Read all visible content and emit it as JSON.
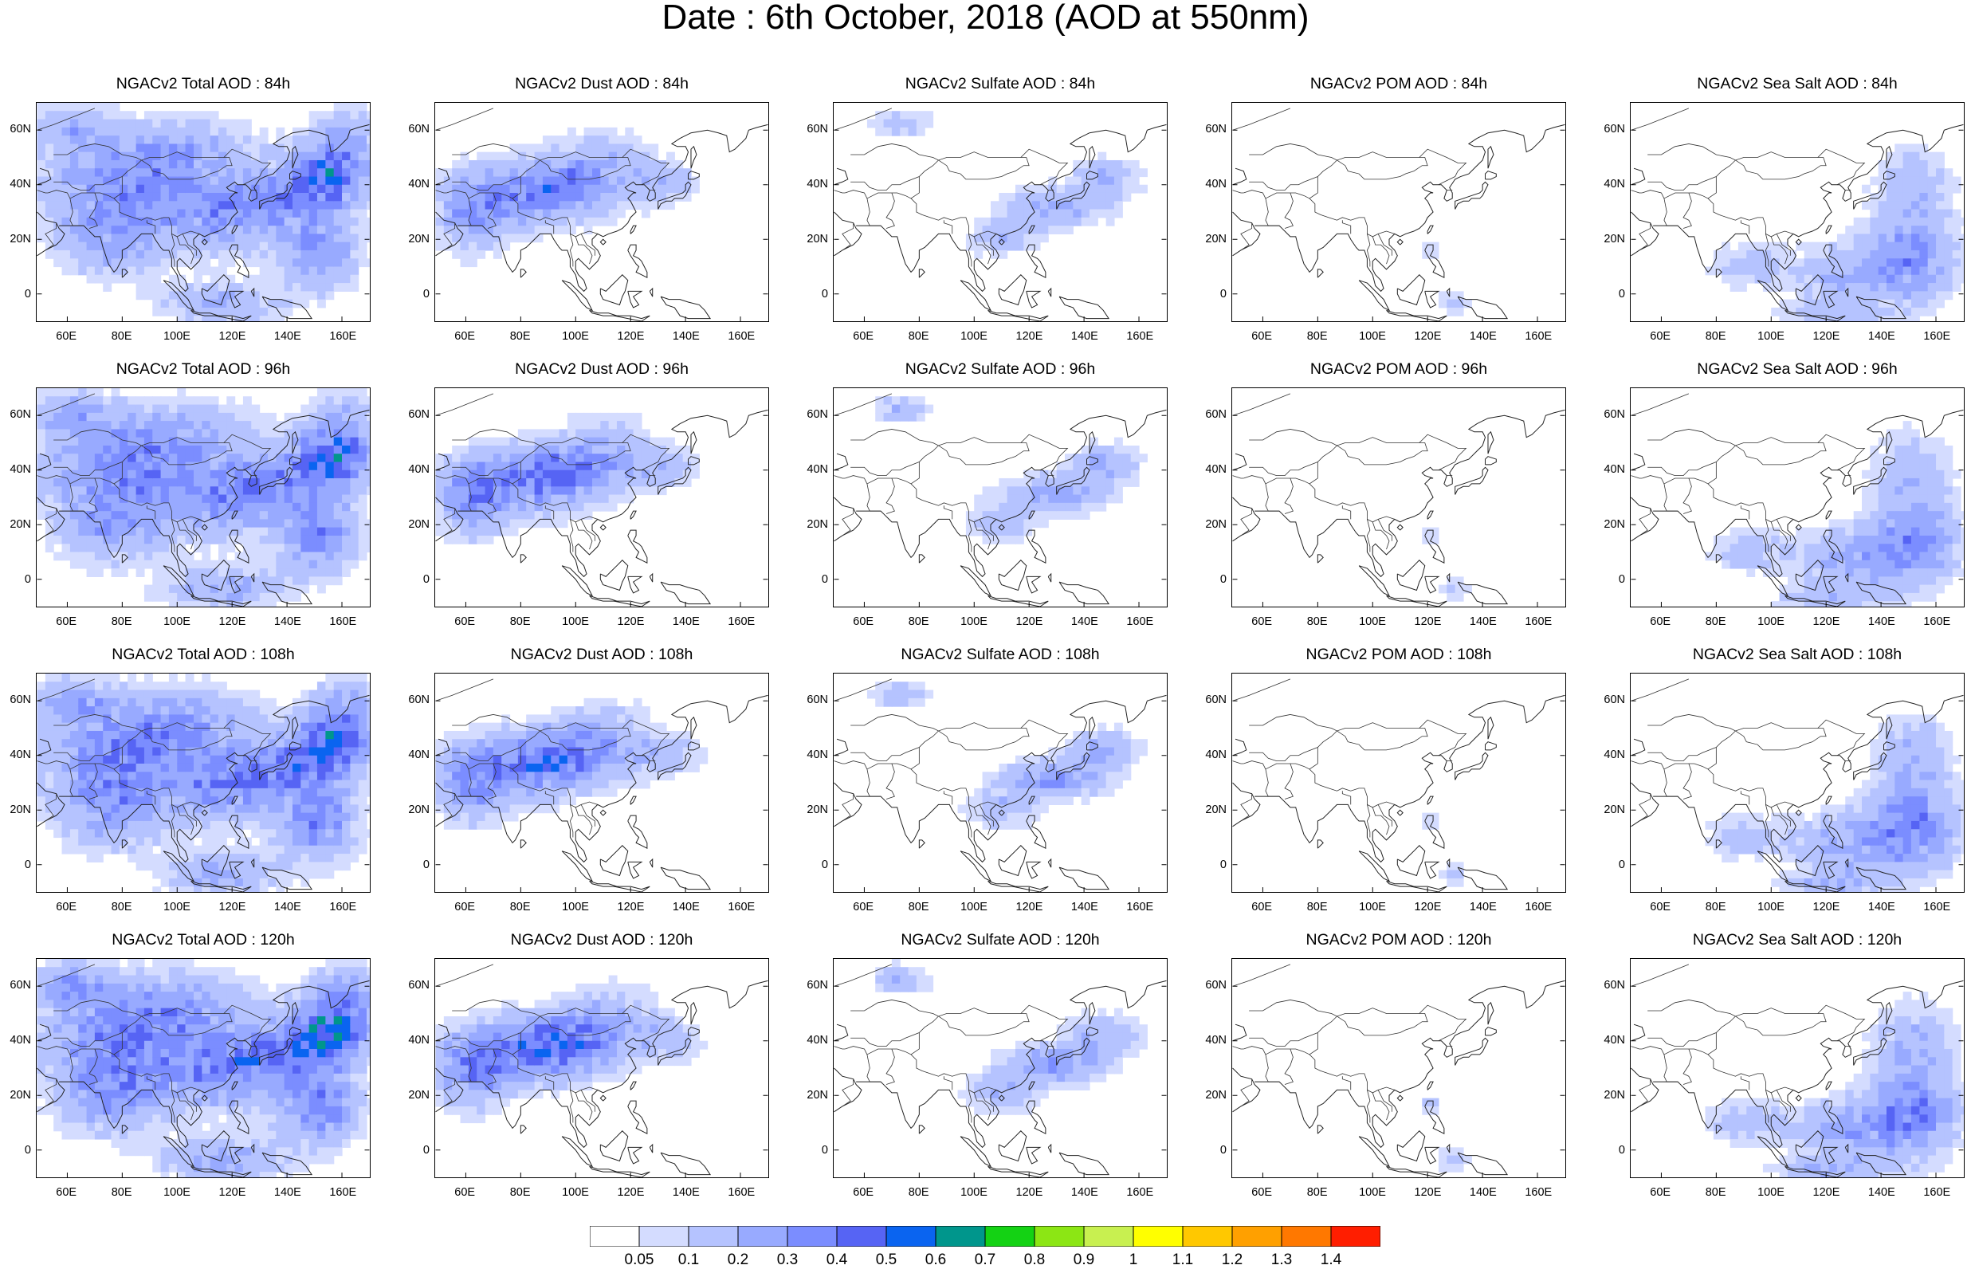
{
  "title": "Date : 6th October, 2018 (AOD at 550nm)",
  "lat_ticks": [
    "60N",
    "40N",
    "20N",
    "0"
  ],
  "lon_ticks": [
    "60E",
    "80E",
    "100E",
    "120E",
    "140E",
    "160E"
  ],
  "panel_titles": [
    [
      "NGACv2 Total AOD : 84h",
      "NGACv2 Dust AOD : 84h",
      "NGACv2 Sulfate AOD : 84h",
      "NGACv2 POM AOD : 84h",
      "NGACv2 Sea Salt AOD : 84h"
    ],
    [
      "NGACv2 Total AOD : 96h",
      "NGACv2 Dust AOD : 96h",
      "NGACv2 Sulfate AOD : 96h",
      "NGACv2 POM AOD : 96h",
      "NGACv2 Sea Salt AOD : 96h"
    ],
    [
      "NGACv2 Total AOD : 108h",
      "NGACv2 Dust AOD : 108h",
      "NGACv2 Sulfate AOD : 108h",
      "NGACv2 POM AOD : 108h",
      "NGACv2 Sea Salt AOD : 108h"
    ],
    [
      "NGACv2 Total AOD : 120h",
      "NGACv2 Dust AOD : 120h",
      "NGACv2 Sulfate AOD : 120h",
      "NGACv2 POM AOD : 120h",
      "NGACv2 Sea Salt  AOD : 120h"
    ]
  ],
  "colorbar": {
    "labels": [
      "0.05",
      "0.1",
      "0.2",
      "0.3",
      "0.4",
      "0.5",
      "0.6",
      "0.7",
      "0.8",
      "0.9",
      "1",
      "1.1",
      "1.2",
      "1.3",
      "1.4"
    ],
    "colors": [
      "#ffffff",
      "#d4dcff",
      "#b5c3ff",
      "#98aaff",
      "#7b8dff",
      "#5664f4",
      "#0a64f0",
      "#00968c",
      "#14d214",
      "#8ce614",
      "#c8f050",
      "#ffff00",
      "#ffc800",
      "#ffa000",
      "#ff7800",
      "#ff1e00"
    ]
  }
}
